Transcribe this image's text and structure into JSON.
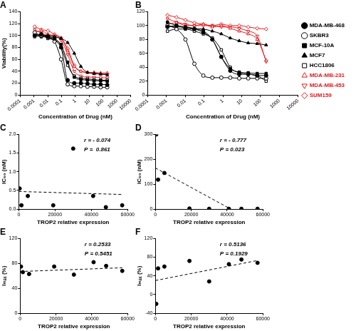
{
  "chart_data": [
    {
      "type": "line",
      "title": "A",
      "x_label": "Concentration of Drug (nM)",
      "y_label": "Viability(%)",
      "log": "x",
      "grid": false,
      "x": [
        0.00113,
        0.00339,
        0.0102,
        0.0305,
        0.0914,
        0.274,
        0.823,
        2.469,
        7.407,
        22.22,
        66.67,
        200
      ],
      "xlim": [
        0.0001,
        10000
      ],
      "xticks": [
        0.0001,
        0.001,
        0.01,
        0.1,
        1,
        10,
        100,
        1000,
        10000
      ],
      "ylim": [
        0,
        140
      ],
      "yticks": [
        0,
        20,
        40,
        60,
        80,
        100,
        120,
        140
      ],
      "series": [
        {
          "name": "MDA-MB-468",
          "color": "#000000",
          "marker": "circle",
          "values": [
            100,
            102,
            98,
            95,
            80,
            25,
            20,
            20,
            19,
            18,
            18,
            17
          ]
        },
        {
          "name": "SKBR3",
          "color": "#000000",
          "marker": "circle-open",
          "values": [
            105,
            100,
            98,
            90,
            60,
            18,
            15,
            15,
            14,
            14,
            13,
            13
          ]
        },
        {
          "name": "MCF-10A",
          "color": "#000000",
          "marker": "square",
          "values": [
            100,
            98,
            97,
            92,
            85,
            55,
            30,
            26,
            25,
            24,
            24,
            23
          ]
        },
        {
          "name": "MCF7",
          "color": "#000000",
          "marker": "triangle",
          "values": [
            102,
            100,
            100,
            98,
            95,
            88,
            70,
            48,
            38,
            36,
            35,
            34
          ]
        },
        {
          "name": "HCC1806",
          "color": "#000000",
          "marker": "square-open",
          "values": [
            98,
            100,
            95,
            92,
            80,
            50,
            32,
            28,
            27,
            26,
            25,
            25
          ]
        },
        {
          "name": "MDA-MB-231",
          "color": "#e31a1c",
          "marker": "triangle-open",
          "values": [
            105,
            108,
            102,
            100,
            95,
            75,
            48,
            40,
            38,
            38,
            37,
            37
          ]
        },
        {
          "name": "MDA-MB-453",
          "color": "#e31a1c",
          "marker": "triangle-down-open",
          "values": [
            110,
            104,
            100,
            98,
            92,
            68,
            40,
            32,
            30,
            30,
            29,
            29
          ]
        },
        {
          "name": "SUM159",
          "color": "#e31a1c",
          "marker": "diamond-open",
          "values": [
            115,
            110,
            108,
            102,
            96,
            78,
            50,
            40,
            38,
            37,
            36,
            36
          ]
        }
      ]
    },
    {
      "type": "line",
      "title": "B",
      "x_label": "Concentration of Drug (nM)",
      "log": "x",
      "grid": false,
      "legend": "right",
      "x": [
        0.00113,
        0.00339,
        0.0102,
        0.0305,
        0.0914,
        0.274,
        0.823,
        2.469,
        7.407,
        22.22,
        66.67,
        200
      ],
      "xlim": [
        0.0001,
        10000
      ],
      "xticks": [
        0.0001,
        0.001,
        0.01,
        0.1,
        1,
        10,
        100,
        1000,
        10000
      ],
      "ylim": [
        0,
        120
      ],
      "yticks": [
        0,
        20,
        40,
        60,
        80,
        100,
        120
      ],
      "series": [
        {
          "name": "MDA-MB-468",
          "color": "#000000",
          "marker": "circle",
          "values": [
            98,
            100,
            96,
            95,
            90,
            80,
            55,
            35,
            30,
            30,
            28,
            28
          ]
        },
        {
          "name": "SKBR3",
          "color": "#000000",
          "marker": "circle-open",
          "values": [
            100,
            95,
            80,
            45,
            28,
            25,
            25,
            25,
            24,
            24,
            24,
            24
          ]
        },
        {
          "name": "MCF-10A",
          "color": "#000000",
          "marker": "square",
          "values": [
            105,
            100,
            98,
            95,
            92,
            80,
            55,
            38,
            33,
            32,
            31,
            31
          ]
        },
        {
          "name": "MCF7",
          "color": "#000000",
          "marker": "triangle",
          "values": [
            100,
            98,
            98,
            96,
            95,
            92,
            88,
            82,
            78,
            75,
            74,
            72
          ]
        },
        {
          "name": "HCC1806",
          "color": "#000000",
          "marker": "square-open",
          "values": [
            92,
            95,
            95,
            92,
            88,
            82,
            65,
            40,
            32,
            30,
            28,
            20
          ]
        },
        {
          "name": "MDA-MB-231",
          "color": "#e31a1c",
          "marker": "triangle-open",
          "values": [
            102,
            104,
            100,
            100,
            102,
            98,
            100,
            96,
            92,
            88,
            80,
            50
          ]
        },
        {
          "name": "MDA-MB-453",
          "color": "#e31a1c",
          "marker": "triangle-down-open",
          "values": [
            110,
            105,
            102,
            100,
            100,
            100,
            98,
            98,
            96,
            92,
            85,
            48
          ]
        },
        {
          "name": "SUM159",
          "color": "#e31a1c",
          "marker": "diamond-open",
          "values": [
            115,
            112,
            108,
            104,
            102,
            100,
            102,
            100,
            100,
            98,
            96,
            95
          ]
        }
      ]
    },
    {
      "type": "scatter",
      "title": "C",
      "x_label": "TROP2 relative expression",
      "y_label": "IC₅₀ (nM)",
      "grid": false,
      "xlim": [
        0,
        60000
      ],
      "xticks": [
        0,
        20000,
        40000,
        60000
      ],
      "ylim": [
        0,
        2
      ],
      "yticks": [
        {
          "value": 0,
          "label": "0.0"
        },
        {
          "value": 0.5,
          "label": "0.5"
        },
        {
          "value": 1,
          "label": "1.0"
        },
        {
          "value": 1.5,
          "label": "1.5"
        },
        {
          "value": 2,
          "label": "2.0"
        }
      ],
      "annotations": [
        "r = - 0.074",
        "P =  0.861"
      ],
      "series": [
        {
          "type": "scatter",
          "color": "#000000",
          "marker": "circle",
          "x": [
            500,
            1500,
            5000,
            19000,
            30000,
            41000,
            48000,
            57000
          ],
          "values": [
            0.55,
            0.1,
            0.35,
            0.1,
            1.62,
            0.35,
            0.05,
            0.1
          ]
        },
        {
          "type": "line",
          "color": "#000000",
          "line_style": "dashed",
          "x": [
            0,
            57000
          ],
          "values": [
            0.47,
            0.39
          ]
        }
      ]
    },
    {
      "type": "scatter",
      "title": "D",
      "x_label": "TROP2 relative expression",
      "y_label": "IC₅₀ (nM)",
      "grid": false,
      "xlim": [
        0,
        60000
      ],
      "xticks": [
        0,
        20000,
        40000,
        60000
      ],
      "ylim": [
        0,
        300
      ],
      "yticks": [
        0,
        100,
        200,
        300
      ],
      "annotations": [
        "r = - 0.777",
        "P = 0.023"
      ],
      "series": [
        {
          "type": "scatter",
          "color": "#000000",
          "marker": "circle",
          "x": [
            500,
            1500,
            5000,
            19000,
            30000,
            41000,
            48000,
            57000
          ],
          "values": [
            300,
            118,
            145,
            2,
            1,
            1,
            1,
            1
          ]
        },
        {
          "type": "line",
          "color": "#000000",
          "line_style": "dashed",
          "x": [
            0,
            42000
          ],
          "values": [
            165,
            0
          ]
        }
      ]
    },
    {
      "type": "scatter",
      "title": "E",
      "x_label": "TROP2 relative expression",
      "y_label": "Iₘₐₓ (%)",
      "grid": false,
      "xlim": [
        0,
        60000
      ],
      "xticks": [
        0,
        20000,
        40000,
        60000
      ],
      "ylim": [
        0,
        120
      ],
      "yticks": [
        0,
        40,
        80,
        120
      ],
      "annotations": [
        "r = 0.2533",
        "P = 0.5451"
      ],
      "series": [
        {
          "type": "scatter",
          "color": "#000000",
          "marker": "circle",
          "x": [
            500,
            1500,
            5000,
            19000,
            30000,
            41000,
            48000,
            57000
          ],
          "values": [
            75,
            66,
            63,
            75,
            62,
            82,
            76,
            68
          ]
        },
        {
          "type": "line",
          "color": "#000000",
          "line_style": "dashed",
          "x": [
            0,
            57000
          ],
          "values": [
            67,
            73
          ]
        }
      ]
    },
    {
      "type": "scatter",
      "title": "F",
      "x_label": "TROP2 relative expression",
      "y_label": "Iₘₐₓ (%)",
      "grid": false,
      "xlim": [
        0,
        60000
      ],
      "xticks": [
        0,
        20000,
        40000,
        60000
      ],
      "ylim": [
        -40,
        120
      ],
      "yticks": [
        -40,
        0,
        40,
        80,
        120
      ],
      "annotations": [
        "r = 0.5136",
        "P = 0.1929"
      ],
      "series": [
        {
          "type": "scatter",
          "color": "#000000",
          "marker": "circle",
          "x": [
            500,
            1500,
            5000,
            19000,
            30000,
            41000,
            48000,
            57000
          ],
          "values": [
            -20,
            56,
            60,
            72,
            28,
            65,
            75,
            68
          ]
        },
        {
          "type": "line",
          "color": "#000000",
          "line_style": "dashed",
          "x": [
            0,
            57000
          ],
          "values": [
            30,
            73
          ]
        }
      ]
    }
  ]
}
